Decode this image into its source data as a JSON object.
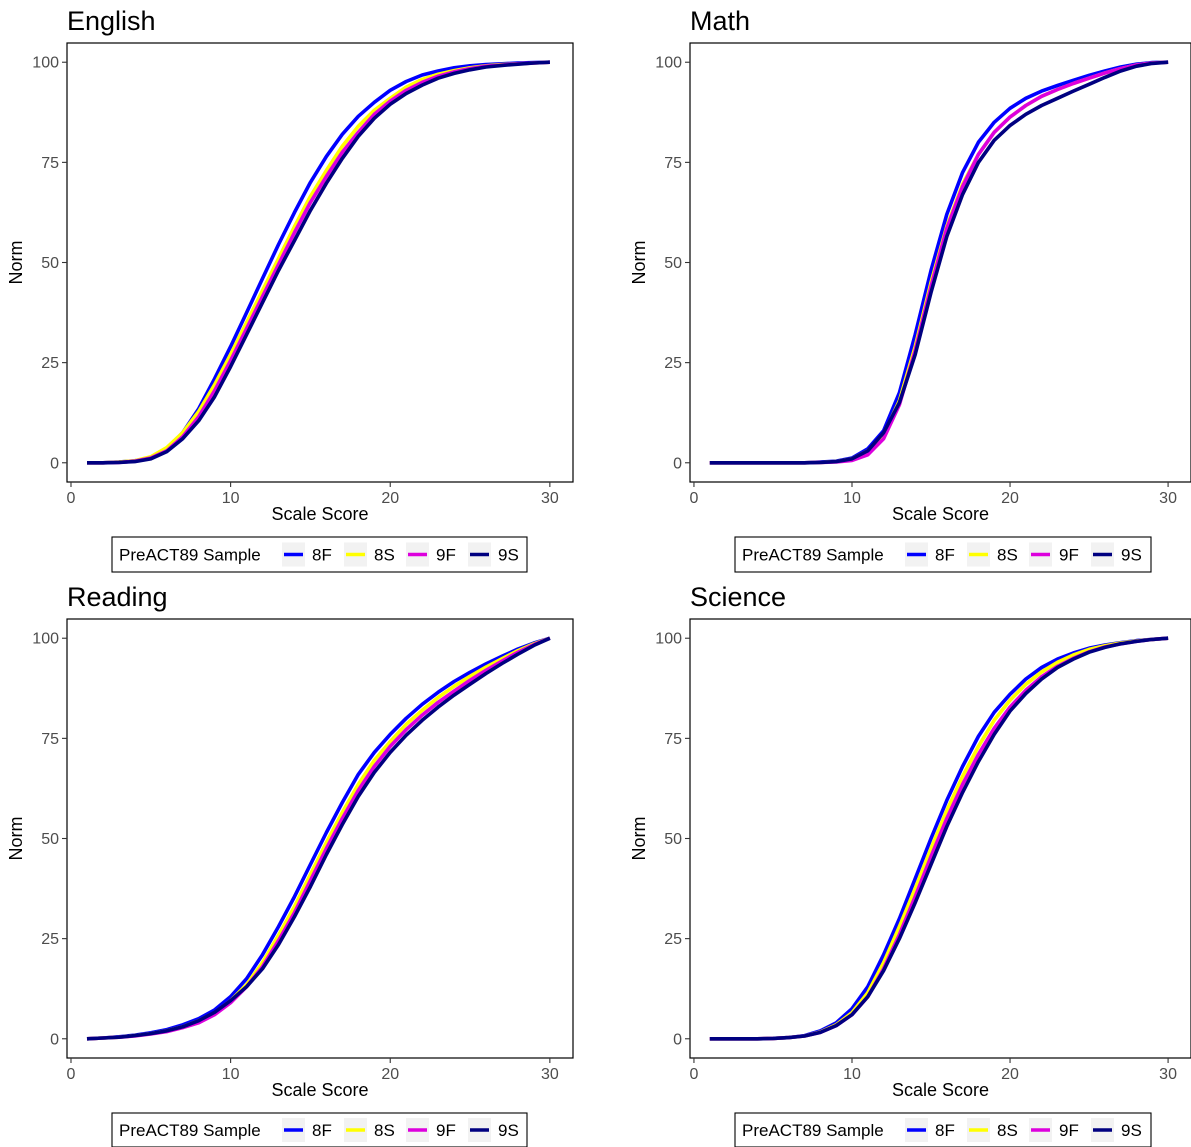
{
  "chart_data": [
    {
      "type": "line",
      "title": "English",
      "xlabel": "Scale Score",
      "ylabel": "Norm",
      "xlim": [
        1,
        30
      ],
      "ylim": [
        0,
        100
      ],
      "xticks": [
        "0",
        "10",
        "20",
        "30"
      ],
      "yticks": [
        "0",
        "25",
        "50",
        "75",
        "100"
      ],
      "grid": false,
      "legend": {
        "title": "PreACT89 Sample",
        "position": "bottom"
      },
      "x": [
        1,
        2,
        3,
        4,
        5,
        6,
        7,
        8,
        9,
        10,
        11,
        12,
        13,
        14,
        15,
        16,
        17,
        18,
        19,
        20,
        21,
        22,
        23,
        24,
        25,
        26,
        27,
        28,
        29,
        30
      ],
      "series": [
        {
          "name": "8F",
          "color": "#0000ff",
          "values": [
            0,
            0,
            0.2,
            0.5,
            1.2,
            3.5,
            7.5,
            13.5,
            21,
            29,
            37.5,
            46,
            54.5,
            62.5,
            70,
            76.5,
            82,
            86.5,
            90,
            93,
            95.2,
            96.8,
            97.8,
            98.6,
            99.1,
            99.4,
            99.6,
            99.8,
            99.9,
            100
          ]
        },
        {
          "name": "8S",
          "color": "#ffff00",
          "values": [
            0,
            0,
            0.2,
            0.5,
            1.5,
            3.8,
            7.5,
            12.8,
            19.5,
            27,
            35,
            43,
            51,
            59,
            66.5,
            73,
            79,
            84,
            88,
            91,
            93.8,
            95.7,
            97,
            97.9,
            98.6,
            99.1,
            99.4,
            99.6,
            99.8,
            100
          ]
        },
        {
          "name": "9F",
          "color": "#dd00dd",
          "values": [
            0,
            0,
            0.1,
            0.4,
            1.2,
            3,
            6.5,
            11.5,
            18,
            25.5,
            33.5,
            41.5,
            49.5,
            57.5,
            65,
            71.5,
            77.5,
            82.5,
            87,
            90.3,
            93,
            95,
            96.5,
            97.6,
            98.4,
            99,
            99.3,
            99.6,
            99.8,
            100
          ]
        },
        {
          "name": "9S",
          "color": "#000080",
          "values": [
            0,
            0,
            0.1,
            0.3,
            1,
            2.8,
            6,
            10.5,
            16.5,
            24,
            32,
            40,
            48,
            55.5,
            63,
            69.8,
            76,
            81.5,
            86,
            89.5,
            92.2,
            94.3,
            96,
            97.2,
            98.1,
            98.8,
            99.2,
            99.5,
            99.8,
            100
          ]
        }
      ]
    },
    {
      "type": "line",
      "title": "Math",
      "xlabel": "Scale Score",
      "ylabel": "Norm",
      "xlim": [
        1,
        30
      ],
      "ylim": [
        0,
        100
      ],
      "xticks": [
        "0",
        "10",
        "20",
        "30"
      ],
      "yticks": [
        "0",
        "25",
        "50",
        "75",
        "100"
      ],
      "grid": false,
      "legend": {
        "title": "PreACT89 Sample",
        "position": "bottom"
      },
      "x": [
        1,
        2,
        3,
        4,
        5,
        6,
        7,
        8,
        9,
        10,
        11,
        12,
        13,
        14,
        15,
        16,
        17,
        18,
        19,
        20,
        21,
        22,
        23,
        24,
        25,
        26,
        27,
        28,
        29,
        30
      ],
      "series": [
        {
          "name": "8F",
          "color": "#0000ff",
          "values": [
            0,
            0,
            0,
            0,
            0,
            0,
            0,
            0.2,
            0.4,
            1.2,
            3.5,
            8,
            17.5,
            32,
            48,
            62,
            72.5,
            80,
            85,
            88.5,
            91,
            92.8,
            94.2,
            95.5,
            96.7,
            97.8,
            98.8,
            99.5,
            99.9,
            100
          ]
        },
        {
          "name": "8S",
          "color": "#ffff00",
          "values": [
            0,
            0,
            0,
            0,
            0,
            0,
            0,
            0.1,
            0.3,
            1,
            3,
            7,
            15.5,
            29,
            45,
            59,
            69.5,
            77,
            82.5,
            86.3,
            89.2,
            91.5,
            93.2,
            94.7,
            96,
            97.3,
            98.4,
            99.3,
            99.8,
            100
          ]
        },
        {
          "name": "9F",
          "color": "#dd00dd",
          "values": [
            0,
            0,
            0,
            0,
            0,
            0,
            0,
            0.1,
            0.2,
            0.6,
            2,
            6,
            14.5,
            28,
            44,
            58.5,
            69,
            77,
            82.5,
            86.3,
            89.2,
            91.5,
            93.2,
            94.7,
            96,
            97.3,
            98.4,
            99.3,
            99.8,
            100
          ]
        },
        {
          "name": "9S",
          "color": "#000080",
          "values": [
            0,
            0,
            0,
            0,
            0,
            0,
            0,
            0.1,
            0.3,
            1,
            3,
            7.5,
            15,
            27,
            42.5,
            56.5,
            67,
            75,
            80.5,
            84.2,
            87,
            89.2,
            91,
            92.8,
            94.5,
            96.2,
            97.8,
            99,
            99.7,
            100
          ]
        }
      ]
    },
    {
      "type": "line",
      "title": "Reading",
      "xlabel": "Scale Score",
      "ylabel": "Norm",
      "xlim": [
        1,
        30
      ],
      "ylim": [
        0,
        100
      ],
      "xticks": [
        "0",
        "10",
        "20",
        "30"
      ],
      "yticks": [
        "0",
        "25",
        "50",
        "75",
        "100"
      ],
      "grid": false,
      "legend": {
        "title": "PreACT89 Sample",
        "position": "bottom"
      },
      "x": [
        1,
        2,
        3,
        4,
        5,
        6,
        7,
        8,
        9,
        10,
        11,
        12,
        13,
        14,
        15,
        16,
        17,
        18,
        19,
        20,
        21,
        22,
        23,
        24,
        25,
        26,
        27,
        28,
        29,
        30
      ],
      "series": [
        {
          "name": "8F",
          "color": "#0000ff",
          "values": [
            0,
            0.2,
            0.5,
            0.9,
            1.5,
            2.3,
            3.5,
            5,
            7.2,
            10.5,
            15,
            21,
            28,
            35.5,
            43.5,
            51.5,
            59,
            66,
            71.5,
            76,
            80,
            83.5,
            86.5,
            89.2,
            91.5,
            93.6,
            95.5,
            97.3,
            98.8,
            100
          ]
        },
        {
          "name": "8S",
          "color": "#ffff00",
          "values": [
            0,
            0.2,
            0.4,
            0.8,
            1.3,
            2,
            3,
            4.5,
            6.5,
            9.5,
            13.5,
            19,
            25.8,
            33,
            41,
            49,
            56.5,
            63.5,
            69.5,
            74.2,
            78.5,
            82,
            85.2,
            88,
            90.5,
            92.8,
            94.9,
            96.9,
            98.6,
            100
          ]
        },
        {
          "name": "9F",
          "color": "#dd00dd",
          "values": [
            0,
            0.2,
            0.4,
            0.7,
            1.2,
            1.8,
            2.8,
            4,
            6,
            9,
            13,
            18,
            24.5,
            31.5,
            39.5,
            47.5,
            55,
            62,
            68,
            73,
            77.2,
            80.8,
            84,
            86.8,
            89.5,
            92,
            94.3,
            96.5,
            98.4,
            100
          ]
        },
        {
          "name": "9S",
          "color": "#000080",
          "values": [
            0,
            0.2,
            0.4,
            0.8,
            1.3,
            2,
            3,
            4.5,
            6.6,
            9.5,
            13,
            17.5,
            23.5,
            30.5,
            38,
            46,
            53.5,
            60.5,
            66.5,
            71.5,
            75.8,
            79.5,
            82.8,
            85.8,
            88.5,
            91.2,
            93.7,
            96,
            98.2,
            100
          ]
        }
      ]
    },
    {
      "type": "line",
      "title": "Science",
      "xlabel": "Scale Score",
      "ylabel": "Norm",
      "xlim": [
        1,
        30
      ],
      "ylim": [
        0,
        100
      ],
      "xticks": [
        "0",
        "10",
        "20",
        "30"
      ],
      "yticks": [
        "0",
        "25",
        "50",
        "75",
        "100"
      ],
      "grid": false,
      "legend": {
        "title": "PreACT89 Sample",
        "position": "bottom"
      },
      "x": [
        1,
        2,
        3,
        4,
        5,
        6,
        7,
        8,
        9,
        10,
        11,
        12,
        13,
        14,
        15,
        16,
        17,
        18,
        19,
        20,
        21,
        22,
        23,
        24,
        25,
        26,
        27,
        28,
        29,
        30
      ],
      "series": [
        {
          "name": "8F",
          "color": "#0000ff",
          "values": [
            0,
            0,
            0,
            0,
            0.1,
            0.3,
            0.8,
            2,
            4,
            7.5,
            13,
            21,
            30,
            40,
            50,
            59.5,
            68,
            75.5,
            81.5,
            86,
            89.8,
            92.7,
            94.8,
            96.3,
            97.5,
            98.3,
            98.9,
            99.4,
            99.7,
            100
          ]
        },
        {
          "name": "8S",
          "color": "#ffff00",
          "values": [
            0,
            0,
            0,
            0,
            0.1,
            0.3,
            0.7,
            1.7,
            3.5,
            6.5,
            11.5,
            19,
            28,
            37.5,
            47.5,
            57,
            65.5,
            73,
            79.5,
            84.5,
            88.5,
            91.6,
            94,
            95.8,
            97.2,
            98.1,
            98.8,
            99.3,
            99.7,
            100
          ]
        },
        {
          "name": "9F",
          "color": "#dd00dd",
          "values": [
            0,
            0,
            0,
            0,
            0.1,
            0.3,
            0.7,
            1.6,
            3.3,
            6,
            10.5,
            17.5,
            26,
            35.5,
            45.5,
            55,
            63.5,
            71,
            77.5,
            82.8,
            87,
            90.4,
            93,
            95,
            96.6,
            97.8,
            98.6,
            99.2,
            99.7,
            100
          ]
        },
        {
          "name": "9S",
          "color": "#000080",
          "values": [
            0,
            0,
            0,
            0,
            0.1,
            0.3,
            0.7,
            1.6,
            3.3,
            6,
            10.5,
            17,
            25,
            34,
            43.5,
            53,
            61.5,
            69.2,
            76,
            81.8,
            86.2,
            89.8,
            92.7,
            94.8,
            96.5,
            97.7,
            98.6,
            99.2,
            99.7,
            100
          ]
        }
      ]
    }
  ]
}
